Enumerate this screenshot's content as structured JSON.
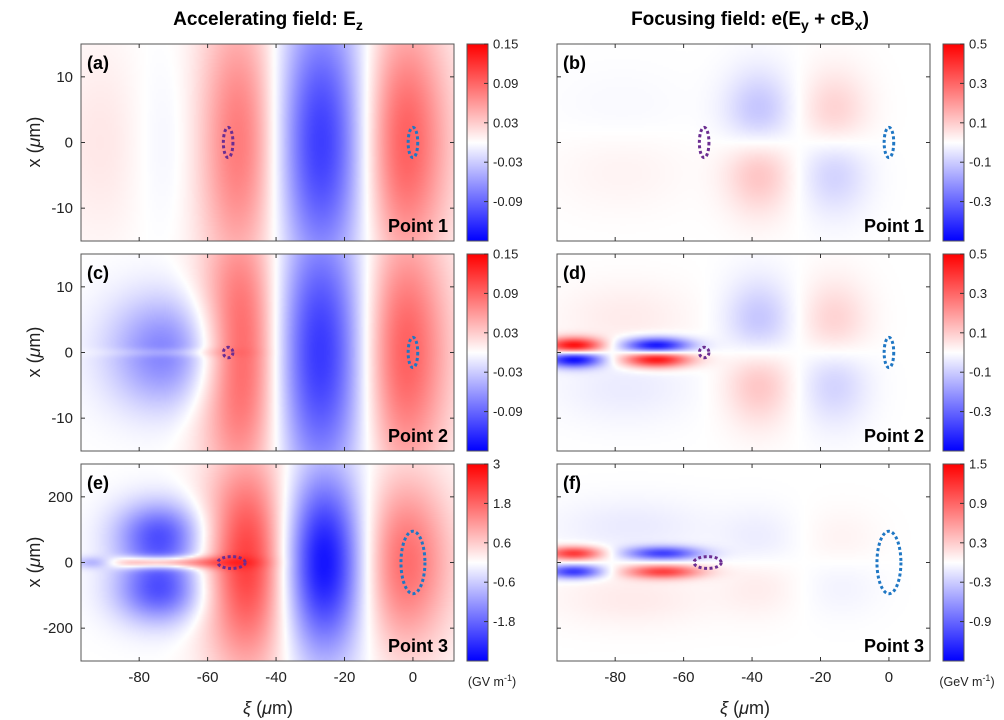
{
  "figure": {
    "column_titles": [
      {
        "main": "Accelerating field: E",
        "sub": "z",
        "tail": ""
      },
      {
        "main": "Focusing field: e(E",
        "sub": "y",
        "mid": " + cB",
        "sub2": "x",
        "tail": ")"
      }
    ],
    "xlabel": {
      "greek": "ξ",
      "text": " (",
      "mu": "μ",
      "tail": "m)"
    },
    "ylabel": {
      "text": "x (",
      "mu": "μ",
      "tail": "m)"
    },
    "colorbar_units": [
      {
        "text": "(GV m",
        "sup": "-1",
        "tail": ")"
      },
      {
        "text": "(GeV m",
        "sup": "-1",
        "tail": ")"
      }
    ]
  },
  "chart_data": [
    {
      "type": "heatmap",
      "panel": "(a)",
      "point_label": "Point 1",
      "field": "Ez",
      "xlim": [
        -97,
        12
      ],
      "ylim": [
        -15,
        15
      ],
      "xticks": [
        -80,
        -60,
        -40,
        -20,
        0
      ],
      "yticks": [
        10,
        0,
        -10
      ],
      "yticklabels": [
        "10",
        "0",
        "-10"
      ],
      "clim": [
        -0.15,
        0.15
      ],
      "cbar_ticks": [
        0.15,
        0.09,
        0.03,
        -0.03,
        -0.09
      ],
      "cbar_ticklabels": [
        "0.15",
        "0.09",
        "0.03",
        "-0.03",
        "-0.09"
      ],
      "lobes": [
        {
          "xc": -90,
          "w": 10,
          "yc": 0,
          "h": 11,
          "amp": 0.015
        },
        {
          "xc": -68,
          "w": 10,
          "yc": 0,
          "h": 11,
          "amp": -0.015
        },
        {
          "xc": -49,
          "w": 10,
          "yc": 0,
          "h": 15,
          "amp": 0.1
        },
        {
          "xc": -27,
          "w": 12,
          "yc": 0,
          "h": 15,
          "amp": -0.13
        },
        {
          "xc": -4,
          "w": 10,
          "yc": 0,
          "h": 14,
          "amp": 0.11
        }
      ],
      "bunches": [
        {
          "name": "witness",
          "color": "#6b2d91",
          "xc": -54,
          "yc": 0,
          "rx": 1.4,
          "ry": 2.3
        },
        {
          "name": "driver",
          "color": "#1f77c4",
          "xc": 0,
          "yc": 0,
          "rx": 1.4,
          "ry": 2.3
        }
      ]
    },
    {
      "type": "heatmap",
      "panel": "(b)",
      "point_label": "Point 1",
      "field": "Fx",
      "xlim": [
        -97,
        12
      ],
      "ylim": [
        -15,
        15
      ],
      "xticks": [
        -80,
        -60,
        -40,
        -20,
        0
      ],
      "yticks": [
        10,
        0,
        -10
      ],
      "yticklabels": [
        "",
        "",
        ""
      ],
      "clim": [
        -0.5,
        0.5
      ],
      "cbar_ticks": [
        0.5,
        0.3,
        0.1,
        -0.1,
        -0.3
      ],
      "cbar_ticklabels": [
        "0.5",
        "0.3",
        "0.1",
        "-0.1",
        "-0.3"
      ],
      "lobes": [
        {
          "xc": -78,
          "w": 14,
          "yc": 3,
          "h": 5,
          "amp": -0.02
        },
        {
          "xc": -78,
          "w": 14,
          "yc": -3,
          "h": 5,
          "amp": 0.03
        },
        {
          "xc": -38,
          "w": 7,
          "yc": 3,
          "h": 5,
          "amp": -0.17
        },
        {
          "xc": -38,
          "w": 7,
          "yc": -3,
          "h": 5,
          "amp": 0.17
        },
        {
          "xc": -16,
          "w": 7,
          "yc": 3,
          "h": 5,
          "amp": 0.13
        },
        {
          "xc": -16,
          "w": 7,
          "yc": -3,
          "h": 5,
          "amp": -0.13
        }
      ],
      "bunches": [
        {
          "name": "witness",
          "color": "#6b2d91",
          "xc": -54,
          "yc": 0,
          "rx": 1.4,
          "ry": 2.3
        },
        {
          "name": "driver",
          "color": "#1f77c4",
          "xc": 0,
          "yc": 0,
          "rx": 1.4,
          "ry": 2.3
        }
      ]
    },
    {
      "type": "heatmap",
      "panel": "(c)",
      "point_label": "Point 2",
      "field": "Ez",
      "xlim": [
        -97,
        12
      ],
      "ylim": [
        -15,
        15
      ],
      "xticks": [
        -80,
        -60,
        -40,
        -20,
        0
      ],
      "yticks": [
        10,
        0,
        -10
      ],
      "yticklabels": [
        "10",
        "0",
        "-10"
      ],
      "clim": [
        -0.15,
        0.15
      ],
      "cbar_ticks": [
        0.15,
        0.09,
        0.03,
        -0.03,
        -0.09
      ],
      "cbar_ticklabels": [
        "0.15",
        "0.09",
        "0.03",
        "-0.03",
        "-0.09"
      ],
      "lobes": [
        {
          "xc": -72,
          "w": 12,
          "yc": 3,
          "h": 5,
          "amp": -0.045
        },
        {
          "xc": -72,
          "w": 12,
          "yc": -3,
          "h": 5,
          "amp": -0.045
        },
        {
          "xc": -72,
          "w": 13,
          "yc": 0,
          "h": 0.5,
          "amp": 0.02
        },
        {
          "xc": -49,
          "w": 9,
          "yc": 0,
          "h": 15,
          "amp": 0.12
        },
        {
          "xc": -27,
          "w": 12,
          "yc": 0,
          "h": 15,
          "amp": -0.13
        },
        {
          "xc": -4,
          "w": 10,
          "yc": 0,
          "h": 14,
          "amp": 0.11
        }
      ],
      "bunches": [
        {
          "name": "witness",
          "color": "#6b2d91",
          "xc": -54,
          "yc": 0,
          "rx": 1.4,
          "ry": 0.8
        },
        {
          "name": "driver",
          "color": "#1f77c4",
          "xc": 0,
          "yc": 0,
          "rx": 1.4,
          "ry": 2.3
        }
      ]
    },
    {
      "type": "heatmap",
      "panel": "(d)",
      "point_label": "Point 2",
      "field": "Fx",
      "xlim": [
        -97,
        12
      ],
      "ylim": [
        -15,
        15
      ],
      "xticks": [
        -80,
        -60,
        -40,
        -20,
        0
      ],
      "yticks": [
        10,
        0,
        -10
      ],
      "yticklabels": [
        "",
        "",
        ""
      ],
      "clim": [
        -0.5,
        0.5
      ],
      "cbar_ticks": [
        0.5,
        0.3,
        0.1,
        -0.1,
        -0.3
      ],
      "cbar_ticklabels": [
        "0.5",
        "0.3",
        "0.1",
        "-0.1",
        "-0.3"
      ],
      "lobes": [
        {
          "xc": -92,
          "w": 6,
          "yc": 1,
          "h": 0.9,
          "amp": 0.5
        },
        {
          "xc": -92,
          "w": 6,
          "yc": -1,
          "h": 0.9,
          "amp": -0.5
        },
        {
          "xc": -68,
          "w": 7,
          "yc": 1,
          "h": 0.9,
          "amp": -0.5
        },
        {
          "xc": -68,
          "w": 7,
          "yc": -1,
          "h": 0.9,
          "amp": 0.5
        },
        {
          "xc": -77,
          "w": 14,
          "yc": 5,
          "h": 4,
          "amp": 0.04
        },
        {
          "xc": -77,
          "w": 14,
          "yc": -5,
          "h": 4,
          "amp": -0.04
        },
        {
          "xc": -38,
          "w": 7,
          "yc": 3,
          "h": 5,
          "amp": -0.17
        },
        {
          "xc": -38,
          "w": 7,
          "yc": -3,
          "h": 5,
          "amp": 0.17
        },
        {
          "xc": -16,
          "w": 7,
          "yc": 3,
          "h": 5,
          "amp": 0.13
        },
        {
          "xc": -16,
          "w": 7,
          "yc": -3,
          "h": 5,
          "amp": -0.13
        }
      ],
      "bunches": [
        {
          "name": "witness",
          "color": "#6b2d91",
          "xc": -54,
          "yc": 0,
          "rx": 1.4,
          "ry": 0.8
        },
        {
          "name": "driver",
          "color": "#1f77c4",
          "xc": 0,
          "yc": 0,
          "rx": 1.4,
          "ry": 2.3
        }
      ]
    },
    {
      "type": "heatmap",
      "panel": "(e)",
      "point_label": "Point 3",
      "field": "Ez",
      "xlim": [
        -97,
        12
      ],
      "ylim": [
        -300,
        300
      ],
      "xticks": [
        -80,
        -60,
        -40,
        -20,
        0
      ],
      "yticks": [
        200,
        0,
        -200
      ],
      "yticklabels": [
        "200",
        "0",
        "-200"
      ],
      "clim": [
        -3,
        3
      ],
      "cbar_ticks": [
        3,
        1.8,
        0.6,
        -0.6,
        -1.8
      ],
      "cbar_ticklabels": [
        "3",
        "1.8",
        "0.6",
        "-0.6",
        "-1.8"
      ],
      "lobes": [
        {
          "xc": -74,
          "w": 9,
          "yc": 85,
          "h": 70,
          "amp": -2.0
        },
        {
          "xc": -74,
          "w": 9,
          "yc": -85,
          "h": 70,
          "amp": -2.0
        },
        {
          "xc": -74,
          "w": 13,
          "yc": 0,
          "h": 13,
          "amp": 2.5
        },
        {
          "xc": -93,
          "w": 5,
          "yc": 0,
          "h": 13,
          "amp": -1.5
        },
        {
          "xc": -48,
          "w": 9,
          "yc": 0,
          "h": 230,
          "amp": 2.4
        },
        {
          "xc": -26,
          "w": 9,
          "yc": 0,
          "h": 200,
          "amp": -3.0
        },
        {
          "xc": -3,
          "w": 10,
          "yc": 0,
          "h": 190,
          "amp": 1.8
        }
      ],
      "bunches": [
        {
          "name": "witness",
          "color": "#6b2d91",
          "xc": -53,
          "yc": 0,
          "rx": 4,
          "ry": 18
        },
        {
          "name": "driver",
          "color": "#1f77c4",
          "xc": 0,
          "yc": 0,
          "rx": 3.5,
          "ry": 95
        }
      ]
    },
    {
      "type": "heatmap",
      "panel": "(f)",
      "point_label": "Point 3",
      "field": "Fx",
      "xlim": [
        -97,
        12
      ],
      "ylim": [
        -300,
        300
      ],
      "xticks": [
        -80,
        -60,
        -40,
        -20,
        0
      ],
      "yticks": [
        200,
        0,
        -200
      ],
      "yticklabels": [
        "",
        "",
        ""
      ],
      "clim": [
        -1.5,
        1.5
      ],
      "cbar_ticks": [
        1.5,
        0.9,
        0.3,
        -0.3,
        -0.9
      ],
      "cbar_ticklabels": [
        "1.5",
        "0.9",
        "0.3",
        "-0.3",
        "-0.9"
      ],
      "lobes": [
        {
          "xc": -92,
          "w": 6,
          "yc": 28,
          "h": 15,
          "amp": 1.2
        },
        {
          "xc": -92,
          "w": 6,
          "yc": -28,
          "h": 15,
          "amp": -1.2
        },
        {
          "xc": -66,
          "w": 8,
          "yc": 28,
          "h": 15,
          "amp": -1.1
        },
        {
          "xc": -66,
          "w": 8,
          "yc": -28,
          "h": 15,
          "amp": 1.1
        },
        {
          "xc": -75,
          "w": 16,
          "yc": 110,
          "h": 60,
          "amp": -0.12
        },
        {
          "xc": -75,
          "w": 16,
          "yc": -110,
          "h": 60,
          "amp": 0.12
        },
        {
          "xc": -38,
          "w": 8,
          "yc": 60,
          "h": 70,
          "amp": -0.12
        },
        {
          "xc": -38,
          "w": 8,
          "yc": -60,
          "h": 70,
          "amp": 0.12
        },
        {
          "xc": -14,
          "w": 8,
          "yc": 60,
          "h": 70,
          "amp": 0.08
        },
        {
          "xc": -14,
          "w": 8,
          "yc": -60,
          "h": 70,
          "amp": -0.08
        }
      ],
      "bunches": [
        {
          "name": "witness",
          "color": "#6b2d91",
          "xc": -53,
          "yc": 0,
          "rx": 4,
          "ry": 18
        },
        {
          "name": "driver",
          "color": "#1f77c4",
          "xc": 0,
          "yc": 0,
          "rx": 3.5,
          "ry": 95
        }
      ]
    }
  ]
}
